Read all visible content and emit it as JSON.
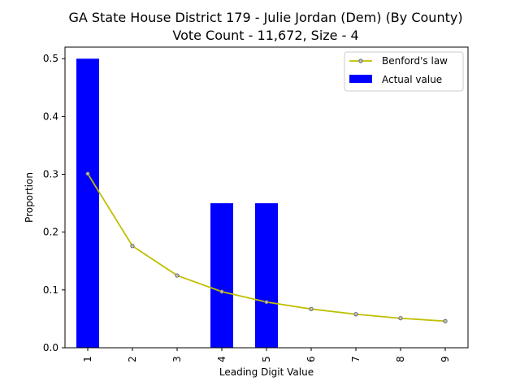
{
  "chart_data": {
    "type": "bar",
    "title": "GA State House District 179 - Julie Jordan (Dem) (By County)",
    "subtitle": "Vote Count - 11,672, Size - 4",
    "xlabel": "Leading Digit Value",
    "ylabel": "Proportion",
    "categories": [
      "1",
      "2",
      "3",
      "4",
      "5",
      "6",
      "7",
      "8",
      "9"
    ],
    "ylim": [
      0,
      0.52
    ],
    "yticks": [
      0.0,
      0.1,
      0.2,
      0.3,
      0.4,
      0.5
    ],
    "ytick_labels": [
      "0.0",
      "0.1",
      "0.2",
      "0.3",
      "0.4",
      "0.5"
    ],
    "series": [
      {
        "name": "Actual value",
        "kind": "bar",
        "color": "#0000ff",
        "values": [
          0.5,
          0,
          0,
          0.25,
          0.25,
          0,
          0,
          0,
          0
        ]
      },
      {
        "name": "Benford's law",
        "kind": "line",
        "color": "#bfbf00",
        "values": [
          0.301,
          0.176,
          0.125,
          0.097,
          0.079,
          0.067,
          0.058,
          0.051,
          0.046
        ]
      }
    ],
    "legend": {
      "position": "top-right",
      "entries": [
        "Benford's law",
        "Actual value"
      ]
    },
    "grid": false
  }
}
